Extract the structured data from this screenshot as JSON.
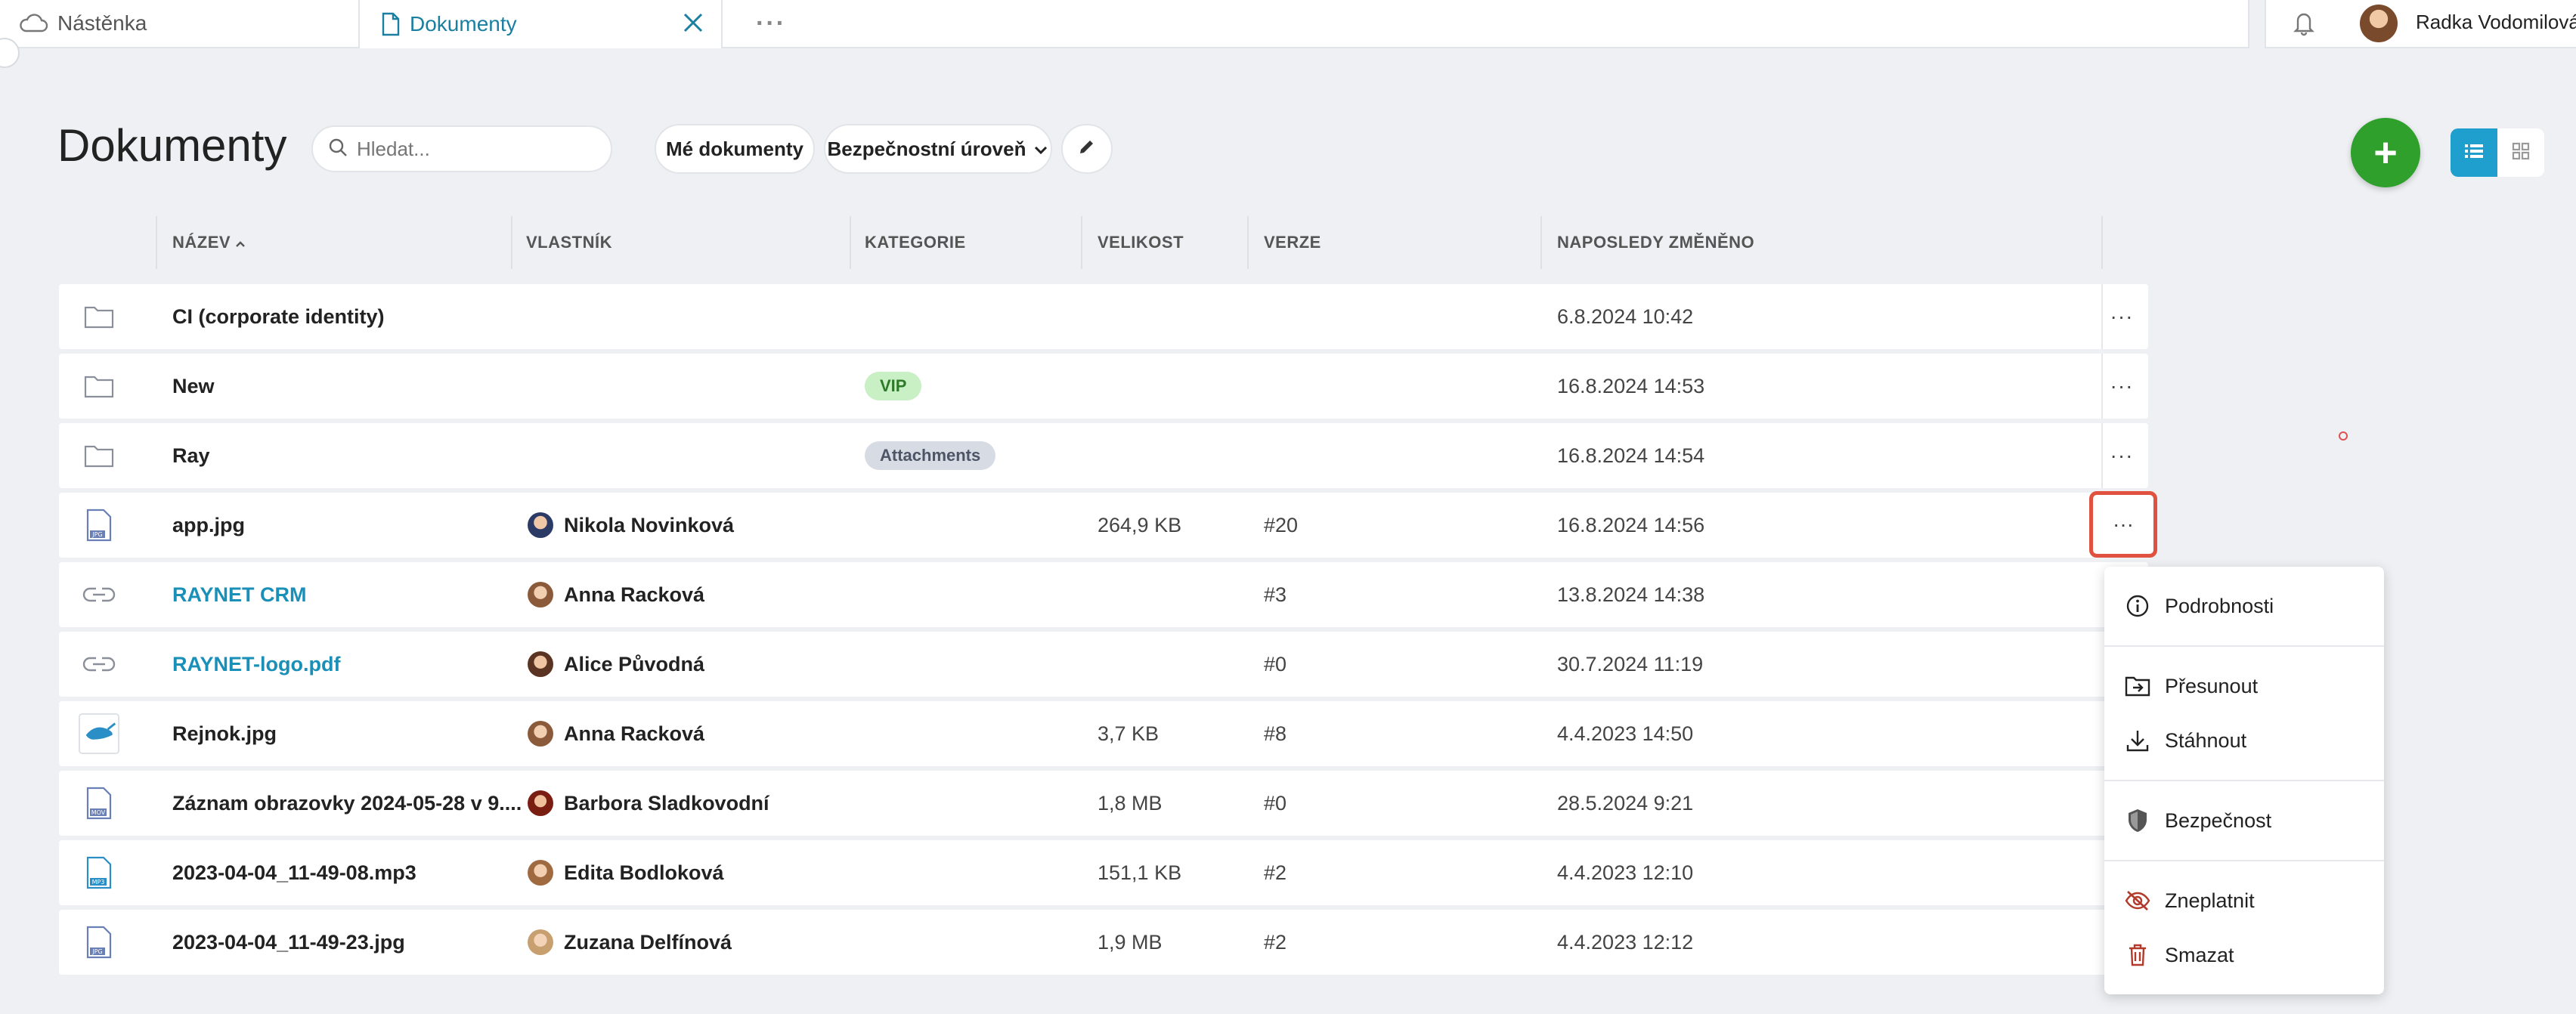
{
  "tabs": {
    "dashboard": "Nástěnka",
    "documents": "Dokumenty",
    "more": "···"
  },
  "user": {
    "name": "Radka Vodomilová"
  },
  "page": {
    "title": "Dokumenty"
  },
  "toolbar": {
    "search_placeholder": "Hledat...",
    "my_documents": "Mé dokumenty",
    "security_level": "Bezpečnostní úroveň",
    "add_label": "+"
  },
  "columns": {
    "name": "NÁZEV",
    "owner": "VLASTNÍK",
    "category": "KATEGORIE",
    "size": "VELIKOST",
    "version": "VERZE",
    "modified": "NAPOSLEDY ZMĚNĚNO"
  },
  "rows": [
    {
      "icon": "folder-icon",
      "name": "CI (corporate identity)",
      "owner": "",
      "category": "",
      "size": "",
      "version": "",
      "modified": "6.8.2024 10:42",
      "menu": "···"
    },
    {
      "icon": "folder-icon",
      "name": "New",
      "owner": "",
      "category": "VIP",
      "size": "",
      "version": "",
      "modified": "16.8.2024 14:53",
      "menu": "···"
    },
    {
      "icon": "folder-icon",
      "name": "Ray",
      "owner": "",
      "category": "Attachments",
      "size": "",
      "version": "",
      "modified": "16.8.2024 14:54",
      "menu": "···"
    },
    {
      "icon": "jpg-file-icon",
      "name": "app.jpg",
      "owner": "Nikola Novinková",
      "category": "",
      "size": "264,9 KB",
      "version": "#20",
      "modified": "16.8.2024 14:56",
      "menu": "···"
    },
    {
      "icon": "link-icon",
      "name": "RAYNET CRM",
      "owner": "Anna Racková",
      "category": "",
      "size": "",
      "version": "#3",
      "modified": "13.8.2024 14:38",
      "menu": ""
    },
    {
      "icon": "link-icon",
      "name": "RAYNET-logo.pdf",
      "owner": "Alice Původná",
      "category": "",
      "size": "",
      "version": "#0",
      "modified": "30.7.2024 11:19",
      "menu": ""
    },
    {
      "icon": "image-thumbnail-icon",
      "name": "Rejnok.jpg",
      "owner": "Anna Racková",
      "category": "",
      "size": "3,7 KB",
      "version": "#8",
      "modified": "4.4.2023 14:50",
      "menu": ""
    },
    {
      "icon": "mov-file-icon",
      "name": "Záznam obrazovky 2024-05-28 v 9....",
      "owner": "Barbora Sladkovodní",
      "category": "",
      "size": "1,8 MB",
      "version": "#0",
      "modified": "28.5.2024 9:21",
      "menu": ""
    },
    {
      "icon": "mp3-file-icon",
      "name": "2023-04-04_11-49-08.mp3",
      "owner": "Edita Bodloková",
      "category": "",
      "size": "151,1 KB",
      "version": "#2",
      "modified": "4.4.2023 12:10",
      "menu": ""
    },
    {
      "icon": "jpg-file-icon",
      "name": "2023-04-04_11-49-23.jpg",
      "owner": "Zuzana Delfínová",
      "category": "",
      "size": "1,9 MB",
      "version": "#2",
      "modified": "4.4.2023 12:12",
      "menu": ""
    }
  ],
  "file_badges": {
    "jpg": "JPG",
    "mov": "MOV",
    "mp3": "MP3"
  },
  "context_menu": {
    "details": "Podrobnosti",
    "move": "Přesunout",
    "download": "Stáhnout",
    "security": "Bezpečnost",
    "invalidate": "Zneplatnit",
    "delete": "Smazat"
  },
  "colors": {
    "accent": "#1e9fce",
    "link": "#1a8fb8",
    "add_button": "#2ea02b",
    "highlight": "#e0523f",
    "delete": "#b3392a"
  }
}
